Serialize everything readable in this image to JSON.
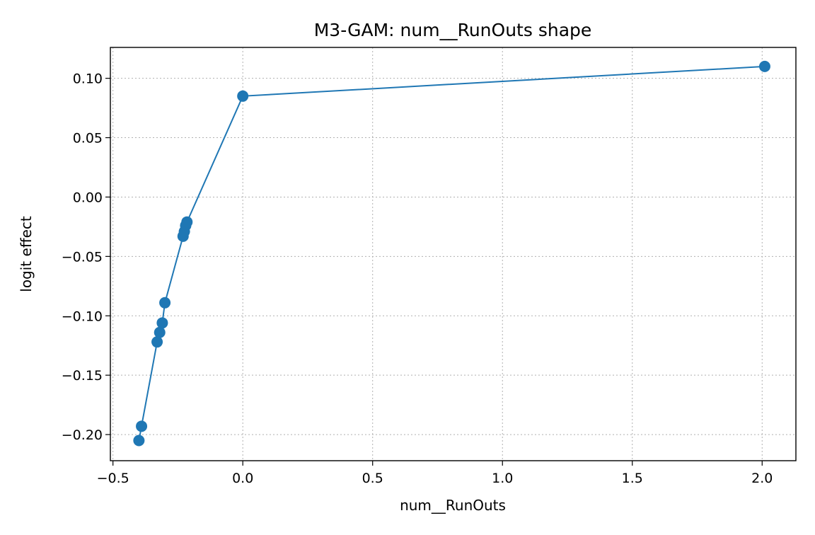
{
  "chart_data": {
    "type": "line",
    "title": "M3-GAM: num__RunOuts shape",
    "xlabel": "num__RunOuts",
    "ylabel": "logit effect",
    "xlim": [
      -0.51,
      2.13
    ],
    "ylim": [
      -0.222,
      0.126
    ],
    "xticks": [
      -0.5,
      0.0,
      0.5,
      1.0,
      1.5,
      2.0
    ],
    "xtick_labels": [
      "−0.5",
      "0.0",
      "0.5",
      "1.0",
      "1.5",
      "2.0"
    ],
    "yticks": [
      -0.2,
      -0.15,
      -0.1,
      -0.05,
      0.0,
      0.05,
      0.1
    ],
    "ytick_labels": [
      "−0.20",
      "−0.15",
      "−0.10",
      "−0.05",
      "0.00",
      "0.05",
      "0.10"
    ],
    "grid": true,
    "marker": "circle",
    "color": "#1f77b4",
    "series": [
      {
        "x": [
          -0.4,
          -0.39,
          -0.33,
          -0.32,
          -0.31,
          -0.3,
          -0.23,
          -0.225,
          -0.22,
          -0.215,
          0.0,
          2.01
        ],
        "y": [
          -0.205,
          -0.193,
          -0.122,
          -0.114,
          -0.106,
          -0.089,
          -0.033,
          -0.029,
          -0.024,
          -0.021,
          0.085,
          0.11
        ]
      }
    ]
  }
}
